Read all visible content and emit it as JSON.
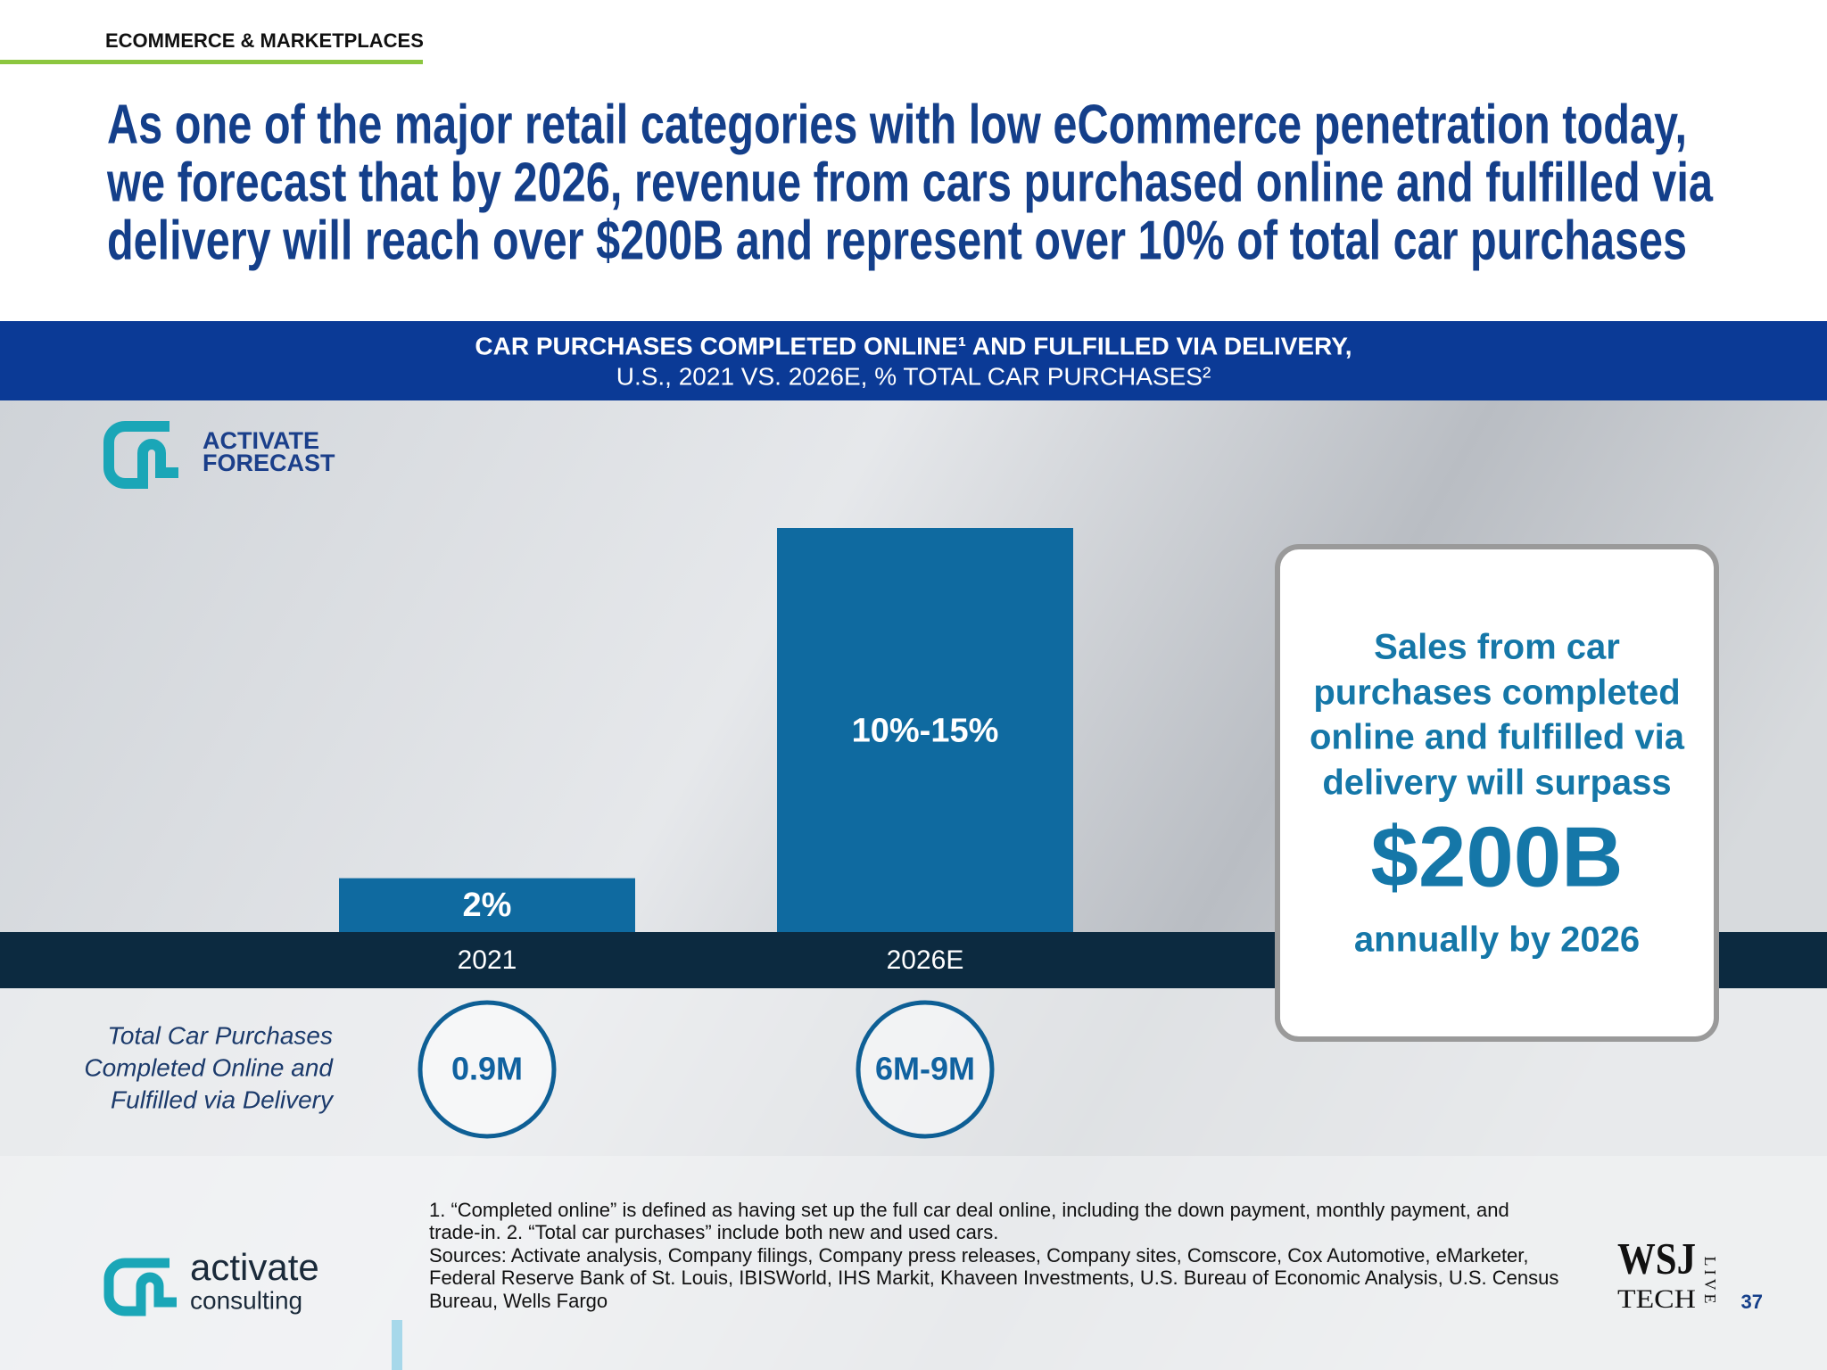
{
  "header": {
    "section": "ECOMMERCE & MARKETPLACES",
    "title": [
      "As one of the major retail categories with low eCommerce penetration today,",
      "we forecast that by 2026, revenue from cars purchased online and fulfilled via",
      "delivery will reach over $200B and represent over 10% of total car purchases"
    ]
  },
  "chart_data": {
    "type": "bar",
    "title": "CAR PURCHASES COMPLETED ONLINE¹ AND FULFILLED VIA DELIVERY,",
    "subtitle": "U.S., 2021 VS. 2026E, % TOTAL CAR PURCHASES²",
    "categories": [
      "2021",
      "2026E"
    ],
    "values": [
      2,
      15
    ],
    "value_labels": [
      "2%",
      "10%-15%"
    ],
    "color": "#0f6aa0"
  },
  "forecast_badge": [
    "ACTIVATE",
    "FORECAST"
  ],
  "purchases": {
    "label": [
      "Total Car Purchases",
      "Completed Online and",
      "Fulfilled via Delivery"
    ],
    "values": [
      "0.9M",
      "6M-9M"
    ]
  },
  "callout": {
    "text": [
      "Sales from car",
      "purchases completed",
      "online and fulfilled via",
      "delivery will surpass"
    ],
    "amount": "$200B",
    "footer": "annually by 2026"
  },
  "footnotes": [
    "1. “Completed online” is defined as having set up the full car deal online, including the down payment, monthly payment, and",
    "trade-in.  2. “Total car purchases” include both new and used cars.",
    "Sources: Activate analysis, Company filings, Company press releases, Company sites, Comscore, Cox Automotive, eMarketer,",
    "Federal Reserve Bank of St. Louis, IBISWorld, IHS Markit, Khaveen Investments, U.S. Bureau of Economic Analysis, U.S. Census",
    "Bureau, Wells Fargo"
  ],
  "logo": {
    "name": "activate",
    "sub": "consulting"
  },
  "wsj": {
    "top": "WSJ",
    "bottom": "TECH",
    "side": "LIVE"
  },
  "page_number": "37"
}
